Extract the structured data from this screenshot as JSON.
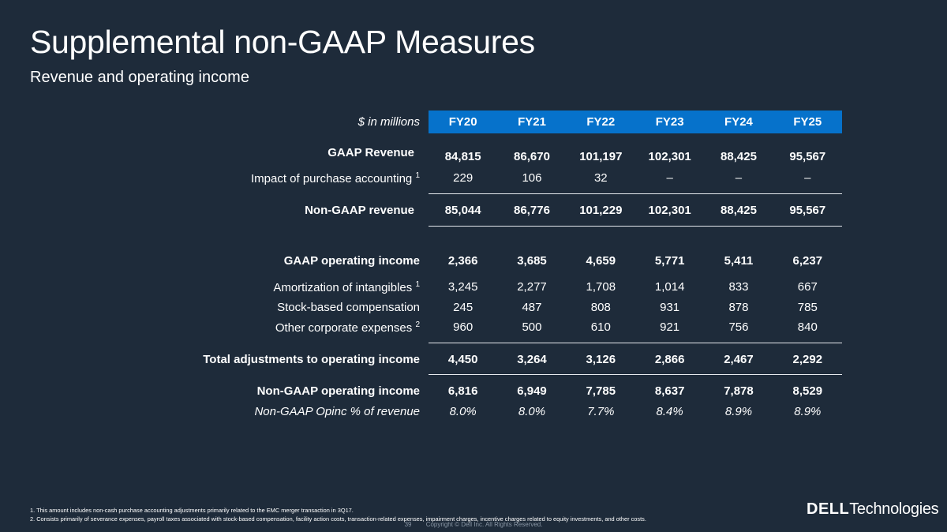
{
  "title": "Supplemental non-GAAP Measures",
  "subtitle": "Revenue and operating income",
  "table": {
    "units_label": "$ in millions",
    "columns": [
      "FY20",
      "FY21",
      "FY22",
      "FY23",
      "FY24",
      "FY25"
    ],
    "rows": [
      {
        "label": "GAAP Revenue",
        "sup": "",
        "values": [
          "84,815",
          "86,670",
          "101,197",
          "102,301",
          "88,425",
          "95,567"
        ]
      },
      {
        "label": "Impact of purchase accounting",
        "sup": "1",
        "values": [
          "229",
          "106",
          "32",
          "–",
          "–",
          "–"
        ]
      },
      {
        "label": "Non-GAAP revenue",
        "sup": "",
        "values": [
          "85,044",
          "86,776",
          "101,229",
          "102,301",
          "88,425",
          "95,567"
        ]
      },
      {
        "label": "GAAP operating income",
        "sup": "",
        "values": [
          "2,366",
          "3,685",
          "4,659",
          "5,771",
          "5,411",
          "6,237"
        ]
      },
      {
        "label": "Amortization of intangibles",
        "sup": "1",
        "values": [
          "3,245",
          "2,277",
          "1,708",
          "1,014",
          "833",
          "667"
        ]
      },
      {
        "label": "Stock-based compensation",
        "sup": "",
        "values": [
          "245",
          "487",
          "808",
          "931",
          "878",
          "785"
        ]
      },
      {
        "label": "Other corporate expenses",
        "sup": "2",
        "values": [
          "960",
          "500",
          "610",
          "921",
          "756",
          "840"
        ]
      },
      {
        "label": "Total adjustments to operating income",
        "sup": "",
        "values": [
          "4,450",
          "3,264",
          "3,126",
          "2,866",
          "2,467",
          "2,292"
        ]
      },
      {
        "label": "Non-GAAP operating income",
        "sup": "",
        "values": [
          "6,816",
          "6,949",
          "7,785",
          "8,637",
          "7,878",
          "8,529"
        ]
      },
      {
        "label": "Non-GAAP Opinc % of revenue",
        "sup": "",
        "values": [
          "8.0%",
          "8.0%",
          "7.7%",
          "8.4%",
          "8.9%",
          "8.9%"
        ]
      }
    ]
  },
  "footnotes": [
    "1. This amount includes non-cash purchase accounting adjustments primarily related to the EMC merger transaction in 3Q17.",
    "2. Consists primarily of severance expenses, payroll taxes associated with stock-based compensation, facility action costs, transaction-related expenses, impairment charges, incentive charges related to equity investments, and other costs."
  ],
  "footer": {
    "page_number": "39",
    "copyright": "Copyright © Dell Inc. All Rights Reserved."
  },
  "logo": {
    "brand": "DELL",
    "suffix": "Technologies"
  }
}
